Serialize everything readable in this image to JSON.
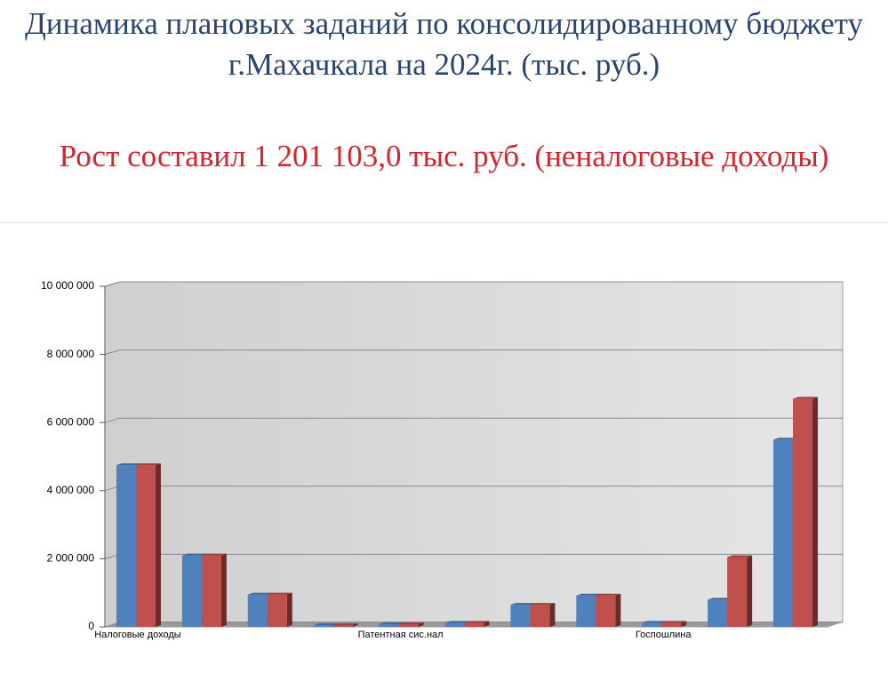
{
  "chart_data": {
    "type": "bar",
    "title": "Динамика плановых заданий по консолидированному бюджету г.Махачкала на 2024г. (тыс. руб.)",
    "subtitle": "Рост составил 1 201 103,0 тыс. руб. (неналоговые доходы)",
    "categories": [
      "Налоговые доходы",
      null,
      null,
      null,
      "Патентная сис.нал",
      null,
      null,
      null,
      "Госпошлина",
      null,
      null
    ],
    "series": [
      {
        "color": "#4f81bd",
        "values": [
          4750000,
          2100000,
          950000,
          50000,
          80000,
          120000,
          650000,
          920000,
          120000,
          800000,
          5500000
        ]
      },
      {
        "color": "#c0504d",
        "values": [
          4750000,
          2100000,
          950000,
          50000,
          80000,
          120000,
          650000,
          920000,
          120000,
          2050000,
          6700000
        ]
      }
    ],
    "ylim": [
      0,
      10000000
    ],
    "yticks": [
      0,
      {
        "value": 2000000,
        "label": "2 000 000"
      },
      {
        "value": 4000000,
        "label": "4 000 000"
      },
      {
        "value": 6000000,
        "label": "6 000 000"
      },
      {
        "value": 8000000,
        "label": "8 000 000"
      },
      {
        "value": 10000000,
        "label": "10 000 000"
      }
    ],
    "grid": true
  }
}
